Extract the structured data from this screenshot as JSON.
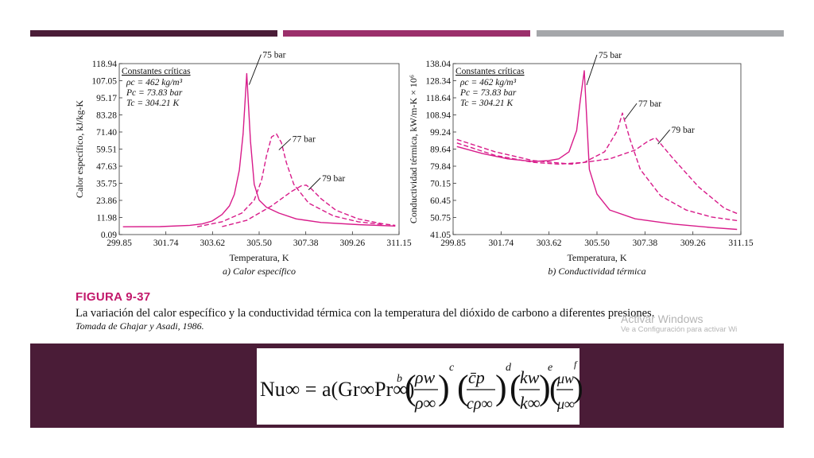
{
  "decoration": {
    "bar_colors": [
      "#4a1c37",
      "#9b2f6b",
      "#a5a7aa"
    ],
    "band_color": "#4a1c37",
    "curve_color": "#d81b8a"
  },
  "chart_data": [
    {
      "type": "line",
      "ylabel": "Calor específico, kJ/kg-K",
      "xlabel": "Temperatura, K",
      "subtitle": "a) Calor específico",
      "xticks": [
        "299.85",
        "301.74",
        "303.62",
        "305.50",
        "307.38",
        "309.26",
        "311.15"
      ],
      "yticks": [
        "0.09",
        "11.98",
        "23.86",
        "35.75",
        "47.63",
        "59.51",
        "71.40",
        "83.28",
        "95.17",
        "107.05",
        "118.94"
      ],
      "xlim": [
        299.85,
        311.15
      ],
      "ylim": [
        0.09,
        118.94
      ],
      "legend_box": {
        "title": "Constantes críticas",
        "lines": [
          "ρc = 462 kg/m³",
          "Pc = 73.83 bar",
          "Tc = 304.21 K"
        ]
      },
      "series": [
        {
          "name": "75 bar",
          "dash": "solid",
          "x": [
            300.0,
            301.5,
            302.7,
            303.2,
            303.6,
            304.0,
            304.3,
            304.5,
            304.7,
            304.85,
            305.0,
            305.15,
            305.3,
            305.5,
            305.8,
            306.3,
            307.0,
            308.0,
            309.5,
            311.0
          ],
          "y": [
            5.5,
            5.6,
            6.5,
            7.5,
            9.5,
            14,
            20,
            28,
            45,
            70,
            112,
            65,
            35,
            24,
            19,
            15,
            11,
            8.5,
            7,
            6
          ]
        },
        {
          "name": "77 bar",
          "dash": "dashed",
          "x": [
            303.0,
            304.0,
            304.8,
            305.3,
            305.6,
            305.8,
            306.0,
            306.2,
            306.4,
            306.6,
            306.9,
            307.5,
            308.5,
            309.5,
            310.5
          ],
          "y": [
            5.5,
            9,
            15,
            24,
            38,
            55,
            68,
            70,
            64,
            50,
            35,
            22,
            13,
            9,
            7
          ]
        },
        {
          "name": "79 bar",
          "dash": "dashed",
          "x": [
            304.0,
            305.0,
            306.0,
            306.8,
            307.2,
            307.4,
            307.6,
            308.0,
            308.6,
            309.5,
            310.5,
            311.0
          ],
          "y": [
            5.6,
            10,
            20,
            30,
            34,
            34.5,
            32,
            25,
            17,
            11,
            7.5,
            6.5
          ]
        }
      ]
    },
    {
      "type": "line",
      "ylabel": "Conductividad térmica, kW/m-K × 10⁶",
      "xlabel": "Temperatura, K",
      "subtitle": "b) Conductividad térmica",
      "xticks": [
        "299.85",
        "301.74",
        "303.62",
        "305.50",
        "307.38",
        "309.26",
        "311.15"
      ],
      "yticks": [
        "41.05",
        "50.75",
        "60.45",
        "70.15",
        "79.84",
        "89.64",
        "99.24",
        "108.94",
        "118.64",
        "128.34",
        "138.04"
      ],
      "xlim": [
        299.85,
        311.15
      ],
      "ylim": [
        41.05,
        138.04
      ],
      "legend_box": {
        "title": "Constantes críticas",
        "lines": [
          "ρc = 462 kg/m³",
          "Pc = 73.83 bar",
          "Tc = 304.21 K"
        ]
      },
      "series": [
        {
          "name": "75 bar",
          "dash": "solid",
          "x": [
            300.0,
            301.0,
            302.0,
            303.0,
            303.6,
            304.0,
            304.4,
            304.7,
            304.85,
            305.0,
            305.2,
            305.5,
            306.0,
            307.0,
            308.5,
            310.0,
            311.0
          ],
          "y": [
            91,
            87,
            84,
            82.5,
            83,
            84,
            88,
            100,
            118,
            134,
            78,
            64,
            55,
            50,
            47,
            45,
            44
          ]
        },
        {
          "name": "77 bar",
          "dash": "dashed",
          "x": [
            300.0,
            301.5,
            303.0,
            304.0,
            305.0,
            305.8,
            306.3,
            306.5,
            306.8,
            307.2,
            308.0,
            309.0,
            310.0,
            311.0
          ],
          "y": [
            93,
            86,
            82,
            81,
            82,
            88,
            100,
            110,
            95,
            78,
            63,
            55,
            51,
            49
          ]
        },
        {
          "name": "79 bar",
          "dash": "dashed",
          "x": [
            300.0,
            301.5,
            303.0,
            304.5,
            306.0,
            307.0,
            307.5,
            307.8,
            308.5,
            309.5,
            310.5,
            311.0
          ],
          "y": [
            95,
            88,
            83,
            81,
            84,
            89,
            94,
            96,
            84,
            68,
            56,
            53
          ]
        }
      ]
    }
  ],
  "caption": {
    "figure_label": "FIGURA 9-37",
    "text": "La  variación del calor específico y  la conductividad térmica con la temperatura del dióxido de carbono a diferentes presiones.",
    "source": "Tomada de Ghajar y Asadi, 1986."
  },
  "watermark": {
    "line1": "Activar Windows",
    "line2": "Ve a Configuración para activar Wi"
  },
  "formula": {
    "lhs": "Nu∞ = a(Gr∞Pr∞)",
    "exp_b": "b",
    "f1_num": "ρw",
    "f1_den": "ρ∞",
    "exp_c": "c",
    "f2_num": "c̄p",
    "f2_den": "cρ∞",
    "exp_d": "d",
    "f3_num": "kw",
    "f3_den": "k∞",
    "exp_e": "e",
    "f4_num": "μw",
    "f4_den": "μ∞",
    "exp_f": "f"
  }
}
